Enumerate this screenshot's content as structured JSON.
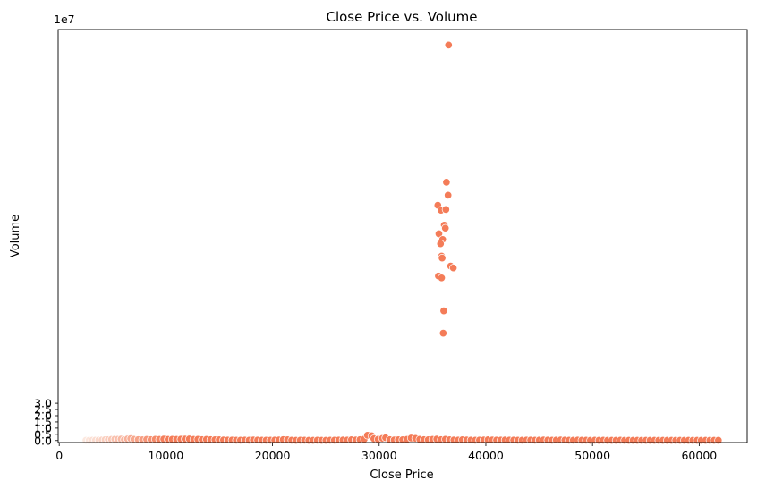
{
  "chart_data": {
    "type": "scatter",
    "title": "Close Price vs. Volume",
    "xlabel": "Close Price",
    "ylabel": "Volume",
    "y_offset_label": "1e7",
    "xlim": [
      -100,
      64500
    ],
    "ylim": [
      -0.16,
      33.1
    ],
    "y_unit_scale": 10000000,
    "x_ticks": [
      0,
      10000,
      20000,
      30000,
      40000,
      50000,
      60000
    ],
    "y_ticks": [
      0.0,
      0.5,
      1.0,
      1.5,
      2.0,
      2.5,
      3.0
    ],
    "y_tick_labels": [
      "0.0",
      "0.5",
      "1.0",
      "1.5",
      "2.0",
      "2.5",
      "3.0"
    ],
    "grid": false,
    "legend": "none",
    "colors": {
      "low": "#fce9e0",
      "high": "#f47c58",
      "edge": "#ffffff"
    },
    "color_encoding": "hue by x: light peach at low Close Price to coral at high Close Price",
    "spike_points": [
      {
        "x": 36500,
        "y": 31.85
      },
      {
        "x": 36300,
        "y": 20.8
      },
      {
        "x": 36450,
        "y": 19.75
      },
      {
        "x": 35500,
        "y": 18.95
      },
      {
        "x": 35800,
        "y": 18.55
      },
      {
        "x": 36250,
        "y": 18.6
      },
      {
        "x": 36100,
        "y": 17.35
      },
      {
        "x": 36200,
        "y": 17.1
      },
      {
        "x": 35600,
        "y": 16.65
      },
      {
        "x": 35950,
        "y": 16.2
      },
      {
        "x": 35750,
        "y": 15.85
      },
      {
        "x": 35850,
        "y": 14.85
      },
      {
        "x": 35900,
        "y": 14.7
      },
      {
        "x": 36700,
        "y": 14.05
      },
      {
        "x": 36950,
        "y": 13.9
      },
      {
        "x": 35550,
        "y": 13.25
      },
      {
        "x": 35850,
        "y": 13.1
      },
      {
        "x": 36050,
        "y": 10.45
      },
      {
        "x": 36000,
        "y": 8.65
      }
    ],
    "baseline_points": [
      {
        "x": 2500,
        "y": 0.02
      },
      {
        "x": 2800,
        "y": 0.02
      },
      {
        "x": 3100,
        "y": 0.03
      },
      {
        "x": 3400,
        "y": 0.03
      },
      {
        "x": 3700,
        "y": 0.04
      },
      {
        "x": 4000,
        "y": 0.05
      },
      {
        "x": 4300,
        "y": 0.06
      },
      {
        "x": 4600,
        "y": 0.08
      },
      {
        "x": 4900,
        "y": 0.09
      },
      {
        "x": 5200,
        "y": 0.11
      },
      {
        "x": 5500,
        "y": 0.1
      },
      {
        "x": 5800,
        "y": 0.12
      },
      {
        "x": 6100,
        "y": 0.08
      },
      {
        "x": 6400,
        "y": 0.13
      },
      {
        "x": 6700,
        "y": 0.16
      },
      {
        "x": 7000,
        "y": 0.1
      },
      {
        "x": 7400,
        "y": 0.08
      },
      {
        "x": 7800,
        "y": 0.07
      },
      {
        "x": 8200,
        "y": 0.09
      },
      {
        "x": 8600,
        "y": 0.08
      },
      {
        "x": 9000,
        "y": 0.1
      },
      {
        "x": 9400,
        "y": 0.09
      },
      {
        "x": 9800,
        "y": 0.12
      },
      {
        "x": 10200,
        "y": 0.09
      },
      {
        "x": 10600,
        "y": 0.1
      },
      {
        "x": 11000,
        "y": 0.09
      },
      {
        "x": 11400,
        "y": 0.11
      },
      {
        "x": 11800,
        "y": 0.12
      },
      {
        "x": 12200,
        "y": 0.13
      },
      {
        "x": 12600,
        "y": 0.09
      },
      {
        "x": 13000,
        "y": 0.1
      },
      {
        "x": 13400,
        "y": 0.08
      },
      {
        "x": 13800,
        "y": 0.09
      },
      {
        "x": 14200,
        "y": 0.08
      },
      {
        "x": 14600,
        "y": 0.07
      },
      {
        "x": 15000,
        "y": 0.06
      },
      {
        "x": 15400,
        "y": 0.05
      },
      {
        "x": 15800,
        "y": 0.04
      },
      {
        "x": 16200,
        "y": 0.04
      },
      {
        "x": 16600,
        "y": 0.03
      },
      {
        "x": 17000,
        "y": 0.03
      },
      {
        "x": 17400,
        "y": 0.04
      },
      {
        "x": 17800,
        "y": 0.03
      },
      {
        "x": 18200,
        "y": 0.05
      },
      {
        "x": 18600,
        "y": 0.04
      },
      {
        "x": 19000,
        "y": 0.03
      },
      {
        "x": 19400,
        "y": 0.03
      },
      {
        "x": 19800,
        "y": 0.03
      },
      {
        "x": 20200,
        "y": 0.04
      },
      {
        "x": 20600,
        "y": 0.05
      },
      {
        "x": 21000,
        "y": 0.08
      },
      {
        "x": 21400,
        "y": 0.06
      },
      {
        "x": 21800,
        "y": 0.03
      },
      {
        "x": 22200,
        "y": 0.02
      },
      {
        "x": 22600,
        "y": 0.03
      },
      {
        "x": 23000,
        "y": 0.03
      },
      {
        "x": 23400,
        "y": 0.02
      },
      {
        "x": 23800,
        "y": 0.02
      },
      {
        "x": 24200,
        "y": 0.03
      },
      {
        "x": 24600,
        "y": 0.02
      },
      {
        "x": 25000,
        "y": 0.02
      },
      {
        "x": 25400,
        "y": 0.03
      },
      {
        "x": 25800,
        "y": 0.03
      },
      {
        "x": 26200,
        "y": 0.04
      },
      {
        "x": 26600,
        "y": 0.05
      },
      {
        "x": 27000,
        "y": 0.04
      },
      {
        "x": 27400,
        "y": 0.06
      },
      {
        "x": 27800,
        "y": 0.05
      },
      {
        "x": 28200,
        "y": 0.08
      },
      {
        "x": 28600,
        "y": 0.12
      },
      {
        "x": 28900,
        "y": 0.42
      },
      {
        "x": 29300,
        "y": 0.38
      },
      {
        "x": 29500,
        "y": 0.15
      },
      {
        "x": 29900,
        "y": 0.1
      },
      {
        "x": 30300,
        "y": 0.18
      },
      {
        "x": 30600,
        "y": 0.22
      },
      {
        "x": 31000,
        "y": 0.08
      },
      {
        "x": 31400,
        "y": 0.05
      },
      {
        "x": 31800,
        "y": 0.06
      },
      {
        "x": 32200,
        "y": 0.07
      },
      {
        "x": 32600,
        "y": 0.09
      },
      {
        "x": 33000,
        "y": 0.2
      },
      {
        "x": 33400,
        "y": 0.18
      },
      {
        "x": 33800,
        "y": 0.1
      },
      {
        "x": 34200,
        "y": 0.08
      },
      {
        "x": 34600,
        "y": 0.06
      },
      {
        "x": 35000,
        "y": 0.09
      },
      {
        "x": 35400,
        "y": 0.12
      },
      {
        "x": 35800,
        "y": 0.08
      },
      {
        "x": 36200,
        "y": 0.1
      },
      {
        "x": 36600,
        "y": 0.07
      },
      {
        "x": 37000,
        "y": 0.05
      },
      {
        "x": 37400,
        "y": 0.04
      },
      {
        "x": 37800,
        "y": 0.06
      },
      {
        "x": 38200,
        "y": 0.05
      },
      {
        "x": 38600,
        "y": 0.04
      },
      {
        "x": 39000,
        "y": 0.03
      },
      {
        "x": 39400,
        "y": 0.04
      },
      {
        "x": 39800,
        "y": 0.05
      },
      {
        "x": 40200,
        "y": 0.06
      },
      {
        "x": 40600,
        "y": 0.05
      },
      {
        "x": 41000,
        "y": 0.04
      },
      {
        "x": 41400,
        "y": 0.04
      },
      {
        "x": 41800,
        "y": 0.05
      },
      {
        "x": 42200,
        "y": 0.04
      },
      {
        "x": 42600,
        "y": 0.04
      },
      {
        "x": 43000,
        "y": 0.03
      },
      {
        "x": 43400,
        "y": 0.03
      },
      {
        "x": 43800,
        "y": 0.04
      },
      {
        "x": 44200,
        "y": 0.04
      },
      {
        "x": 44600,
        "y": 0.03
      },
      {
        "x": 45000,
        "y": 0.04
      },
      {
        "x": 45400,
        "y": 0.05
      },
      {
        "x": 45800,
        "y": 0.04
      },
      {
        "x": 46200,
        "y": 0.03
      },
      {
        "x": 46600,
        "y": 0.04
      },
      {
        "x": 47000,
        "y": 0.05
      },
      {
        "x": 47400,
        "y": 0.04
      },
      {
        "x": 47800,
        "y": 0.03
      },
      {
        "x": 48200,
        "y": 0.03
      },
      {
        "x": 48600,
        "y": 0.04
      },
      {
        "x": 49000,
        "y": 0.03
      },
      {
        "x": 49400,
        "y": 0.03
      },
      {
        "x": 49800,
        "y": 0.02
      },
      {
        "x": 50200,
        "y": 0.03
      },
      {
        "x": 50600,
        "y": 0.02
      },
      {
        "x": 51000,
        "y": 0.03
      },
      {
        "x": 51400,
        "y": 0.02
      },
      {
        "x": 51800,
        "y": 0.02
      },
      {
        "x": 52200,
        "y": 0.02
      },
      {
        "x": 52600,
        "y": 0.03
      },
      {
        "x": 53000,
        "y": 0.02
      },
      {
        "x": 53400,
        "y": 0.02
      },
      {
        "x": 53800,
        "y": 0.02
      },
      {
        "x": 54200,
        "y": 0.02
      },
      {
        "x": 54600,
        "y": 0.02
      },
      {
        "x": 55000,
        "y": 0.02
      },
      {
        "x": 55400,
        "y": 0.02
      },
      {
        "x": 55800,
        "y": 0.02
      },
      {
        "x": 56200,
        "y": 0.02
      },
      {
        "x": 56600,
        "y": 0.02
      },
      {
        "x": 57000,
        "y": 0.02
      },
      {
        "x": 57400,
        "y": 0.02
      },
      {
        "x": 57800,
        "y": 0.02
      },
      {
        "x": 58200,
        "y": 0.02
      },
      {
        "x": 58600,
        "y": 0.02
      },
      {
        "x": 59000,
        "y": 0.02
      },
      {
        "x": 59400,
        "y": 0.02
      },
      {
        "x": 59800,
        "y": 0.02
      },
      {
        "x": 60200,
        "y": 0.02
      },
      {
        "x": 60600,
        "y": 0.02
      },
      {
        "x": 61000,
        "y": 0.02
      },
      {
        "x": 61400,
        "y": 0.02
      },
      {
        "x": 61800,
        "y": 0.02
      }
    ]
  }
}
